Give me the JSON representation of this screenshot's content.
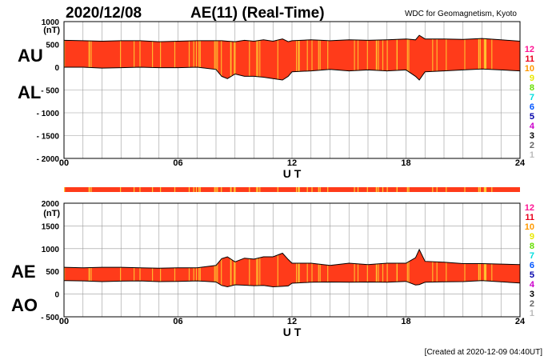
{
  "header": {
    "date": "2020/12/08",
    "title": "AE(11) (Real-Time)",
    "source": "WDC for Geomagnetism, Kyoto"
  },
  "footer": {
    "created": "[Created at 2020-12-09 04:40UT]"
  },
  "colors": {
    "fill": "#ff3b1a",
    "stripe": "#ffcc33",
    "grid": "#9a9a9a",
    "outline": "#000000"
  },
  "station_legend": [
    {
      "num": "12",
      "color": "#ff1493"
    },
    {
      "num": "11",
      "color": "#e8001c"
    },
    {
      "num": "10",
      "color": "#ff9900"
    },
    {
      "num": "9",
      "color": "#e8e800"
    },
    {
      "num": "8",
      "color": "#66dd00"
    },
    {
      "num": "7",
      "color": "#00dddd"
    },
    {
      "num": "6",
      "color": "#0055ff"
    },
    {
      "num": "5",
      "color": "#0000aa"
    },
    {
      "num": "4",
      "color": "#cc00cc"
    },
    {
      "num": "3",
      "color": "#000000"
    },
    {
      "num": "2",
      "color": "#666666"
    },
    {
      "num": "1",
      "color": "#bbbbbb"
    }
  ],
  "chart_data": [
    {
      "type": "area",
      "name": "AU/AL",
      "unit": "(nT)",
      "left_labels": [
        "AU",
        "AL"
      ],
      "xlabel": "U T",
      "xlim": [
        0,
        24
      ],
      "x_ticks": [
        "00",
        "06",
        "12",
        "18",
        "24"
      ],
      "ylim": [
        -2000,
        1000
      ],
      "y_ticks": [
        "1000",
        "500",
        "0",
        "- 500",
        "- 1000",
        "- 1500",
        "- 2000"
      ],
      "grid": true,
      "x": [
        0,
        1,
        2,
        3,
        4,
        5,
        6,
        7,
        8,
        8.3,
        8.6,
        9,
        9.5,
        10,
        10.5,
        11,
        11.5,
        11.8,
        12,
        13,
        14,
        15,
        16,
        17,
        18,
        18.5,
        18.7,
        19,
        20,
        21,
        22,
        23,
        24
      ],
      "series": [
        {
          "name": "AU",
          "values": [
            590,
            580,
            570,
            580,
            580,
            560,
            570,
            580,
            580,
            580,
            570,
            560,
            590,
            570,
            600,
            570,
            620,
            560,
            580,
            600,
            580,
            600,
            590,
            600,
            620,
            600,
            700,
            620,
            620,
            610,
            630,
            600,
            570
          ]
        },
        {
          "name": "AL",
          "values": [
            0,
            0,
            -20,
            -10,
            0,
            -10,
            -10,
            0,
            -50,
            -200,
            -250,
            -150,
            -200,
            -200,
            -220,
            -250,
            -280,
            -200,
            -100,
            -80,
            -50,
            -80,
            -60,
            -80,
            -60,
            -200,
            -280,
            -100,
            -80,
            -60,
            -40,
            -60,
            -80
          ]
        }
      ]
    },
    {
      "type": "area",
      "name": "AE/AO",
      "unit": "(nT)",
      "left_labels": [
        "AE",
        "AO"
      ],
      "xlabel": "U T",
      "xlim": [
        0,
        24
      ],
      "x_ticks": [
        "00",
        "06",
        "12",
        "18",
        "24"
      ],
      "ylim": [
        -500,
        2000
      ],
      "y_ticks": [
        "2000",
        "1500",
        "1000",
        "500",
        "0",
        "- 500"
      ],
      "grid": true,
      "x": [
        0,
        1,
        2,
        3,
        4,
        5,
        6,
        7,
        8,
        8.3,
        8.6,
        9,
        9.5,
        10,
        10.5,
        11,
        11.5,
        11.8,
        12,
        13,
        14,
        15,
        16,
        17,
        18,
        18.5,
        18.7,
        19,
        20,
        21,
        22,
        23,
        24
      ],
      "series": [
        {
          "name": "AE",
          "values": [
            590,
            580,
            590,
            590,
            580,
            570,
            580,
            580,
            630,
            780,
            820,
            710,
            790,
            770,
            820,
            820,
            900,
            760,
            680,
            680,
            630,
            680,
            650,
            680,
            680,
            800,
            980,
            720,
            700,
            670,
            670,
            660,
            650
          ]
        },
        {
          "name": "AO",
          "values": [
            295,
            290,
            275,
            285,
            290,
            275,
            280,
            290,
            265,
            190,
            160,
            205,
            195,
            185,
            190,
            160,
            170,
            180,
            240,
            260,
            265,
            260,
            265,
            260,
            280,
            200,
            210,
            260,
            270,
            275,
            295,
            270,
            245
          ]
        }
      ]
    }
  ]
}
